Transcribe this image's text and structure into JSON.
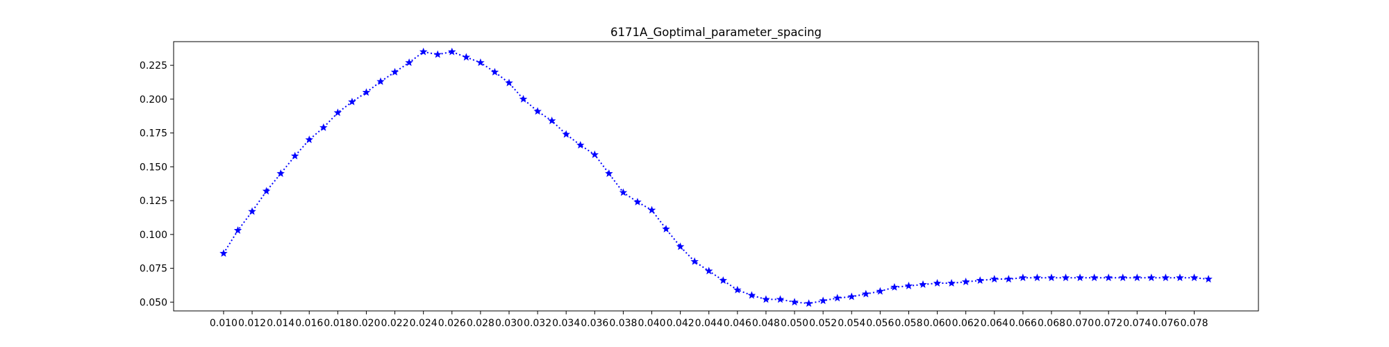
{
  "chart_data": {
    "type": "line",
    "title": "6171A_Goptimal_parameter_spacing",
    "xlabel": "",
    "ylabel": "",
    "xlim": [
      0.0065,
      0.0825
    ],
    "ylim": [
      0.0435,
      0.2425
    ],
    "line_style": "dotted",
    "marker": "star",
    "color": "#0000ff",
    "grid": false,
    "x_ticks": [
      0.01,
      0.012,
      0.014,
      0.016,
      0.018,
      0.02,
      0.022,
      0.024,
      0.026,
      0.028,
      0.03,
      0.032,
      0.034,
      0.036,
      0.038,
      0.04,
      0.042,
      0.044,
      0.046,
      0.048,
      0.05,
      0.052,
      0.054,
      0.056,
      0.058,
      0.06,
      0.062,
      0.064,
      0.066,
      0.068,
      0.07,
      0.072,
      0.074,
      0.076,
      0.078
    ],
    "x_tick_labels": [
      "0.010",
      "0.012",
      "0.014",
      "0.016",
      "0.018",
      "0.020",
      "0.022",
      "0.024",
      "0.026",
      "0.028",
      "0.030",
      "0.032",
      "0.034",
      "0.036",
      "0.038",
      "0.040",
      "0.042",
      "0.044",
      "0.046",
      "0.048",
      "0.050",
      "0.052",
      "0.054",
      "0.056",
      "0.058",
      "0.060",
      "0.062",
      "0.064",
      "0.066",
      "0.068",
      "0.070",
      "0.072",
      "0.074",
      "0.076",
      "0.078"
    ],
    "y_ticks": [
      0.05,
      0.075,
      0.1,
      0.125,
      0.15,
      0.175,
      0.2,
      0.225
    ],
    "y_tick_labels": [
      "0.050",
      "0.075",
      "0.100",
      "0.125",
      "0.150",
      "0.175",
      "0.200",
      "0.225"
    ],
    "x": [
      0.01,
      0.011,
      0.012,
      0.013,
      0.014,
      0.015,
      0.016,
      0.017,
      0.018,
      0.019,
      0.02,
      0.021,
      0.022,
      0.023,
      0.024,
      0.025,
      0.026,
      0.027,
      0.028,
      0.029,
      0.03,
      0.031,
      0.032,
      0.033,
      0.034,
      0.035,
      0.036,
      0.037,
      0.038,
      0.039,
      0.04,
      0.041,
      0.042,
      0.043,
      0.044,
      0.045,
      0.046,
      0.047,
      0.048,
      0.049,
      0.05,
      0.051,
      0.052,
      0.053,
      0.054,
      0.055,
      0.056,
      0.057,
      0.058,
      0.059,
      0.06,
      0.061,
      0.062,
      0.063,
      0.064,
      0.065,
      0.066,
      0.067,
      0.068,
      0.069,
      0.07,
      0.071,
      0.072,
      0.073,
      0.074,
      0.075,
      0.076,
      0.077,
      0.078,
      0.079
    ],
    "y": [
      0.086,
      0.103,
      0.117,
      0.132,
      0.145,
      0.158,
      0.17,
      0.179,
      0.19,
      0.198,
      0.205,
      0.213,
      0.22,
      0.227,
      0.235,
      0.233,
      0.235,
      0.231,
      0.227,
      0.22,
      0.212,
      0.2,
      0.191,
      0.184,
      0.174,
      0.166,
      0.159,
      0.145,
      0.131,
      0.124,
      0.118,
      0.104,
      0.091,
      0.08,
      0.073,
      0.066,
      0.059,
      0.055,
      0.052,
      0.052,
      0.05,
      0.049,
      0.051,
      0.053,
      0.054,
      0.056,
      0.058,
      0.061,
      0.062,
      0.063,
      0.064,
      0.064,
      0.065,
      0.066,
      0.067,
      0.067,
      0.068,
      0.068,
      0.068,
      0.068,
      0.068,
      0.068,
      0.068,
      0.068,
      0.068,
      0.068,
      0.068,
      0.068,
      0.068,
      0.067
    ]
  }
}
